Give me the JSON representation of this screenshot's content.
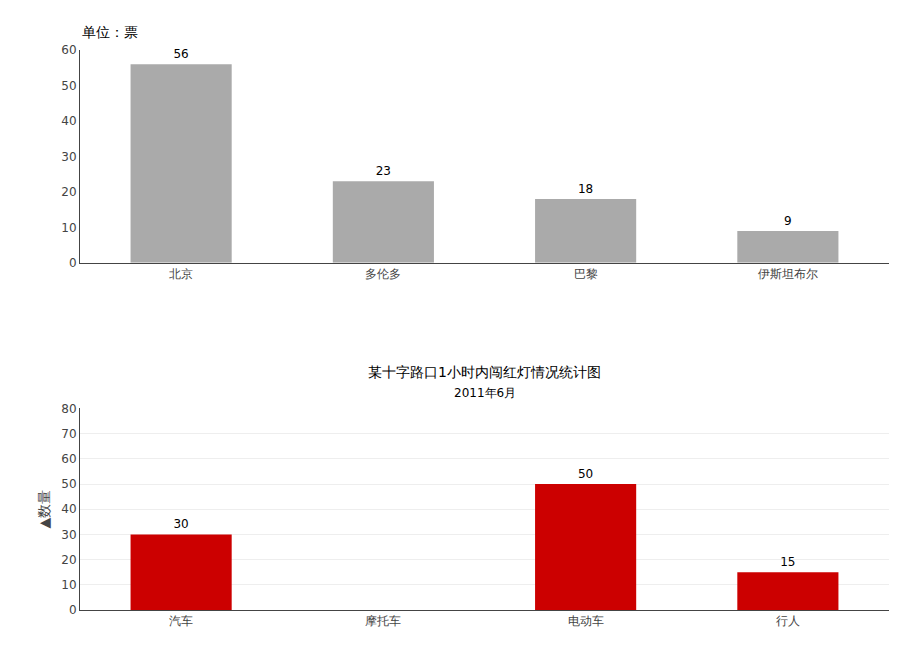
{
  "chart_data": [
    {
      "type": "bar",
      "title": "单位：票",
      "categories": [
        "北京",
        "多伦多",
        "巴黎",
        "伊斯坦布尔"
      ],
      "values": [
        56,
        23,
        18,
        9
      ],
      "color": "#aaaaaa",
      "ylim": [
        0,
        60
      ],
      "yticks": [
        0,
        10,
        20,
        30,
        40,
        50,
        60
      ],
      "grid": false,
      "data_labels": true
    },
    {
      "type": "bar",
      "title": "某十字路口1小时内闯红灯情况统计图",
      "subtitle": "2011年6月",
      "ylabel": "▲数量",
      "categories": [
        "汽车",
        "摩托车",
        "电动车",
        "行人"
      ],
      "values": [
        30,
        0,
        50,
        15
      ],
      "value_labels": [
        "30",
        null,
        "50",
        "15"
      ],
      "color": "#cc0000",
      "ylim": [
        0,
        80
      ],
      "yticks": [
        0,
        10,
        20,
        30,
        40,
        50,
        60,
        70,
        80
      ],
      "grid": true,
      "data_labels": true
    }
  ]
}
